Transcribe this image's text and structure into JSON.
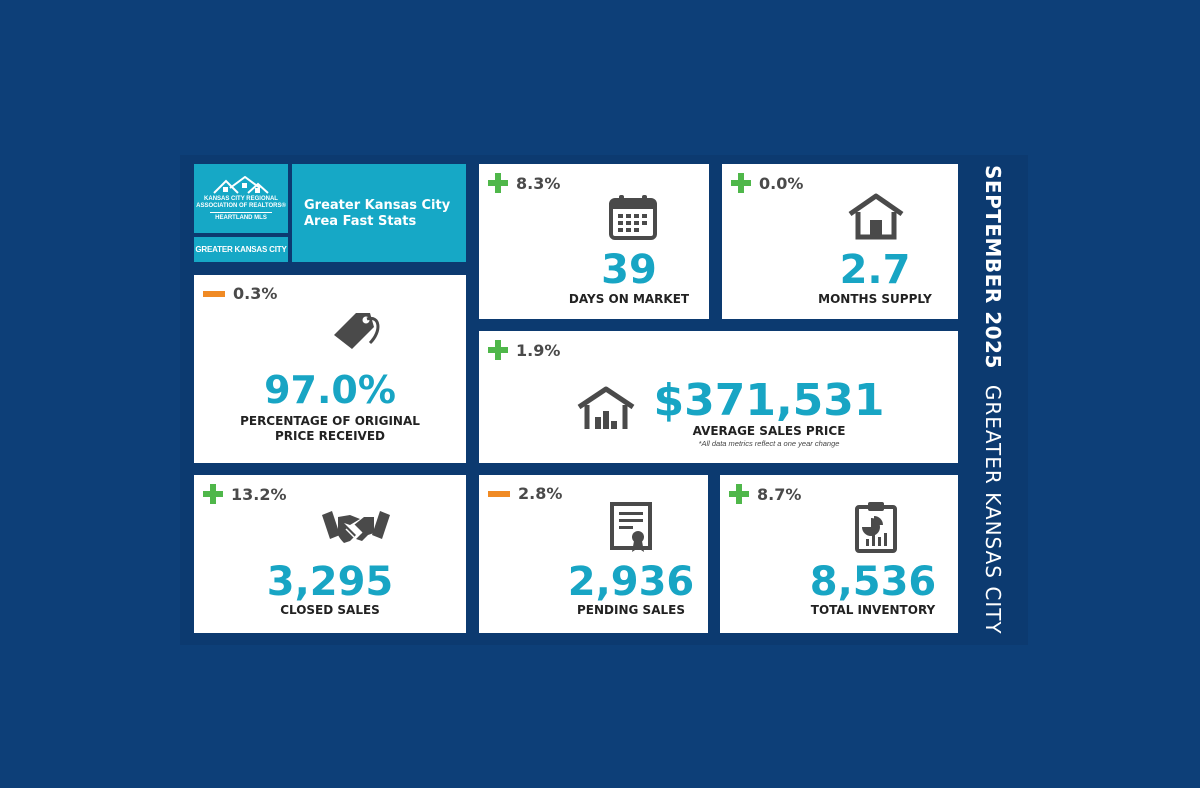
{
  "header": {
    "logo_line1": "KANSAS CITY REGIONAL",
    "logo_line2": "ASSOCIATION OF REALTORS®",
    "logo_line3": "HEARTLAND MLS",
    "region_tag": "GREATER KANSAS CITY",
    "title": "Greater Kansas City Area Fast Stats"
  },
  "side_title": {
    "month": "SEPTEMBER 2025",
    "area": "GREATER KANSAS CITY"
  },
  "colors": {
    "background": "#0d3f78",
    "teal": "#16a8c6",
    "increase": "#4fb74a",
    "decrease": "#f08a24"
  },
  "stats": {
    "days_on_market": {
      "change": "8.3%",
      "direction": "up",
      "value": "39",
      "label": "DAYS ON MARKET",
      "icon": "calendar-icon"
    },
    "months_supply": {
      "change": "0.0%",
      "direction": "up",
      "value": "2.7",
      "label": "MONTHS SUPPLY",
      "icon": "house-icon"
    },
    "pct_original": {
      "change": "0.3%",
      "direction": "down",
      "value": "97.0%",
      "label_line1": "PERCENTAGE OF ORIGINAL",
      "label_line2": "PRICE RECEIVED",
      "icon": "price-tag-icon"
    },
    "avg_price": {
      "change": "1.9%",
      "direction": "up",
      "value": "$371,531",
      "label": "AVERAGE SALES PRICE",
      "note": "*All data metrics reflect a one year change",
      "icon": "house-chart-icon"
    },
    "closed_sales": {
      "change": "13.2%",
      "direction": "up",
      "value": "3,295",
      "label": "CLOSED SALES",
      "icon": "handshake-icon"
    },
    "pending_sales": {
      "change": "2.8%",
      "direction": "down",
      "value": "2,936",
      "label": "PENDING SALES",
      "icon": "certificate-icon"
    },
    "total_inventory": {
      "change": "8.7%",
      "direction": "up",
      "value": "8,536",
      "label": "TOTAL INVENTORY",
      "icon": "clipboard-chart-icon"
    }
  }
}
